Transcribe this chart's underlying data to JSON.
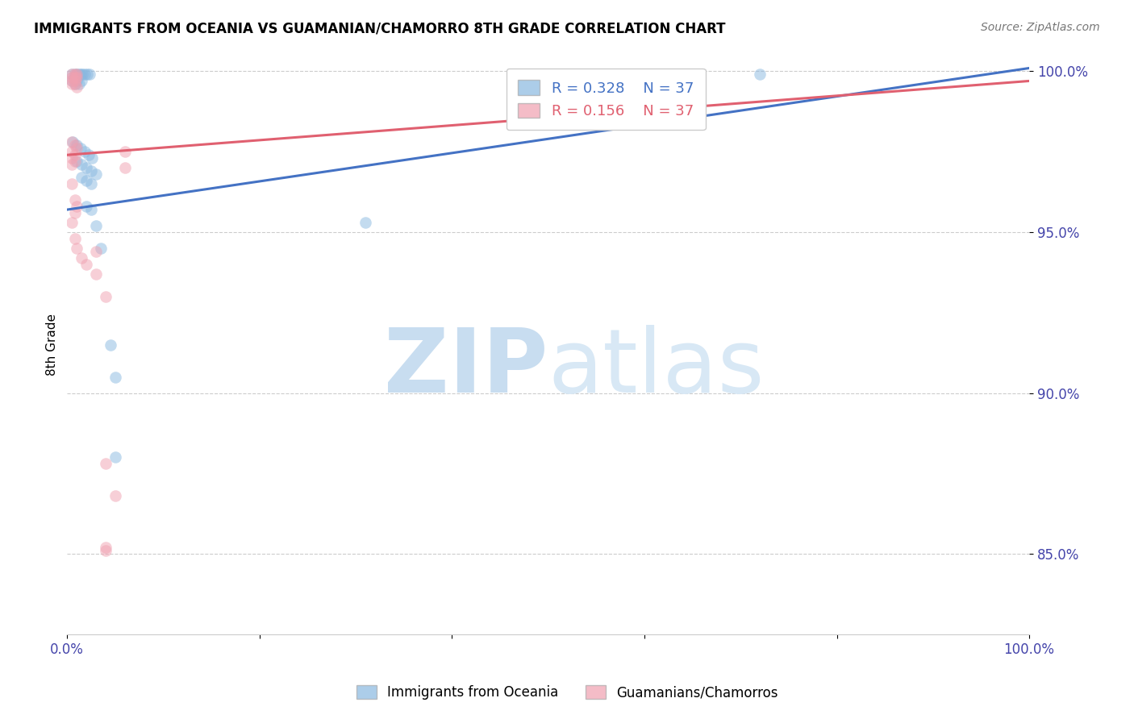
{
  "title": "IMMIGRANTS FROM OCEANIA VS GUAMANIAN/CHAMORRO 8TH GRADE CORRELATION CHART",
  "source": "Source: ZipAtlas.com",
  "ylabel": "8th Grade",
  "blue_R": 0.328,
  "pink_R": 0.156,
  "N": 37,
  "blue_color": "#89b8e0",
  "pink_color": "#f0a0b0",
  "trendline_blue": "#4472c4",
  "trendline_pink": "#e06070",
  "legend_label_blue": "Immigrants from Oceania",
  "legend_label_pink": "Guamanians/Chamorros",
  "xlim": [
    0.0,
    1.0
  ],
  "ylim": [
    0.825,
    1.005
  ],
  "yticks": [
    0.85,
    0.9,
    0.95,
    1.0
  ],
  "ytick_labels": [
    "85.0%",
    "90.0%",
    "95.0%",
    "100.0%"
  ],
  "xtick_positions": [
    0.0,
    0.2,
    0.4,
    0.6,
    0.8,
    1.0
  ],
  "xtick_labels": [
    "0.0%",
    "",
    "",
    "",
    "",
    "100.0%"
  ],
  "blue_points": [
    [
      0.005,
      0.999
    ],
    [
      0.008,
      0.999
    ],
    [
      0.01,
      0.999
    ],
    [
      0.012,
      0.999
    ],
    [
      0.014,
      0.999
    ],
    [
      0.016,
      0.999
    ],
    [
      0.018,
      0.999
    ],
    [
      0.021,
      0.999
    ],
    [
      0.023,
      0.999
    ],
    [
      0.005,
      0.997
    ],
    [
      0.01,
      0.997
    ],
    [
      0.015,
      0.997
    ],
    [
      0.008,
      0.996
    ],
    [
      0.012,
      0.996
    ],
    [
      0.006,
      0.978
    ],
    [
      0.01,
      0.977
    ],
    [
      0.014,
      0.976
    ],
    [
      0.018,
      0.975
    ],
    [
      0.022,
      0.974
    ],
    [
      0.026,
      0.973
    ],
    [
      0.01,
      0.972
    ],
    [
      0.015,
      0.971
    ],
    [
      0.02,
      0.97
    ],
    [
      0.025,
      0.969
    ],
    [
      0.03,
      0.968
    ],
    [
      0.015,
      0.967
    ],
    [
      0.02,
      0.966
    ],
    [
      0.025,
      0.965
    ],
    [
      0.02,
      0.958
    ],
    [
      0.025,
      0.957
    ],
    [
      0.03,
      0.952
    ],
    [
      0.035,
      0.945
    ],
    [
      0.045,
      0.915
    ],
    [
      0.05,
      0.905
    ],
    [
      0.05,
      0.88
    ],
    [
      0.31,
      0.953
    ],
    [
      0.72,
      0.999
    ]
  ],
  "pink_points": [
    [
      0.005,
      0.999
    ],
    [
      0.008,
      0.999
    ],
    [
      0.01,
      0.999
    ],
    [
      0.005,
      0.998
    ],
    [
      0.008,
      0.998
    ],
    [
      0.01,
      0.998
    ],
    [
      0.005,
      0.997
    ],
    [
      0.008,
      0.997
    ],
    [
      0.005,
      0.996
    ],
    [
      0.008,
      0.996
    ],
    [
      0.01,
      0.995
    ],
    [
      0.005,
      0.978
    ],
    [
      0.008,
      0.977
    ],
    [
      0.01,
      0.976
    ],
    [
      0.005,
      0.975
    ],
    [
      0.008,
      0.974
    ],
    [
      0.005,
      0.973
    ],
    [
      0.008,
      0.972
    ],
    [
      0.005,
      0.971
    ],
    [
      0.005,
      0.965
    ],
    [
      0.008,
      0.96
    ],
    [
      0.01,
      0.958
    ],
    [
      0.008,
      0.956
    ],
    [
      0.005,
      0.953
    ],
    [
      0.008,
      0.948
    ],
    [
      0.01,
      0.945
    ],
    [
      0.03,
      0.944
    ],
    [
      0.015,
      0.942
    ],
    [
      0.02,
      0.94
    ],
    [
      0.03,
      0.937
    ],
    [
      0.04,
      0.93
    ],
    [
      0.04,
      0.878
    ],
    [
      0.05,
      0.868
    ],
    [
      0.04,
      0.852
    ],
    [
      0.04,
      0.851
    ],
    [
      0.06,
      0.97
    ],
    [
      0.06,
      0.975
    ]
  ],
  "blue_trend_x": [
    0.0,
    1.0
  ],
  "blue_trend_y_start": 0.957,
  "blue_trend_y_end": 1.001,
  "pink_trend_x": [
    0.0,
    1.0
  ],
  "pink_trend_y_start": 0.974,
  "pink_trend_y_end": 0.997
}
